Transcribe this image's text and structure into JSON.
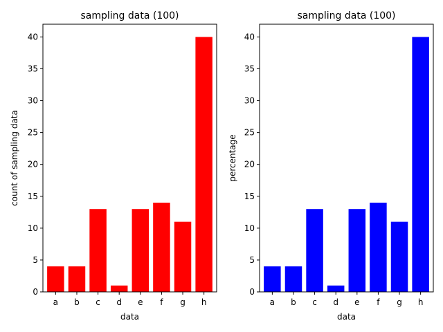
{
  "chart_data": [
    {
      "type": "bar",
      "title": "sampling data (100)",
      "xlabel": "data",
      "ylabel": "count of sampling data",
      "categories": [
        "a",
        "b",
        "c",
        "d",
        "e",
        "f",
        "g",
        "h"
      ],
      "values": [
        4,
        4,
        13,
        1,
        13,
        14,
        11,
        40
      ],
      "ylim": [
        0,
        42
      ],
      "yticks": [
        "0",
        "5",
        "10",
        "15",
        "20",
        "25",
        "30",
        "35",
        "40"
      ],
      "color": "#ff0000",
      "grid": false
    },
    {
      "type": "bar",
      "title": "sampling data (100)",
      "xlabel": "data",
      "ylabel": "percentage",
      "categories": [
        "a",
        "b",
        "c",
        "d",
        "e",
        "f",
        "g",
        "h"
      ],
      "values": [
        4,
        4,
        13,
        1,
        13,
        14,
        11,
        40
      ],
      "ylim": [
        0,
        42
      ],
      "yticks": [
        "0",
        "5",
        "10",
        "15",
        "20",
        "25",
        "30",
        "35",
        "40"
      ],
      "color": "#0000ff",
      "grid": false
    }
  ]
}
